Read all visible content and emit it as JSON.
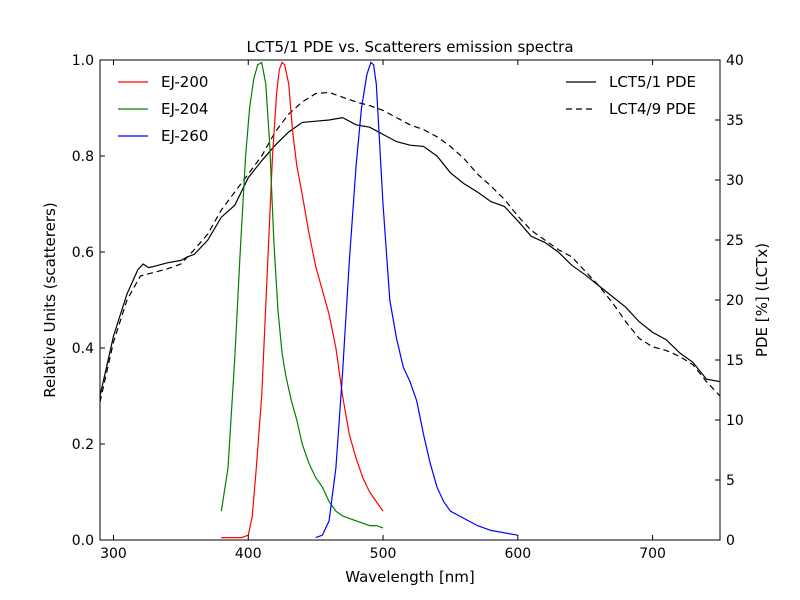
{
  "chart_data": {
    "type": "line",
    "title": "LCT5/1 PDE vs. Scatterers emission spectra",
    "xlabel": "Wavelength [nm]",
    "ylabel_left": "Relative Units (scatterers)",
    "ylabel_right": "PDE [%] (LCTx)",
    "xlim": [
      290,
      750
    ],
    "ylim_left": [
      0.0,
      1.0
    ],
    "ylim_right": [
      0,
      40
    ],
    "xticks": [
      300,
      400,
      500,
      600,
      700
    ],
    "xtick_labels": [
      "300",
      "400",
      "500",
      "600",
      "700"
    ],
    "yticks_left": [
      0.0,
      0.2,
      0.4,
      0.6,
      0.8,
      1.0
    ],
    "ytick_labels_left": [
      "0.0",
      "0.2",
      "0.4",
      "0.6",
      "0.8",
      "1.0"
    ],
    "yticks_right": [
      0,
      5,
      10,
      15,
      20,
      25,
      30,
      35,
      40
    ],
    "ytick_labels_right": [
      "0",
      "5",
      "10",
      "15",
      "20",
      "25",
      "30",
      "35",
      "40"
    ],
    "grid": false,
    "legend_left_placement": "top-left",
    "legend_right_placement": "top-right",
    "series_left": [
      {
        "name": "EJ-200",
        "color": "#ff0000",
        "style": "solid",
        "x": [
          380,
          395,
          400,
          403,
          406,
          410,
          414,
          418,
          421,
          423,
          425,
          427,
          430,
          433,
          436,
          440,
          445,
          450,
          455,
          460,
          465,
          470,
          475,
          480,
          485,
          490,
          495,
          500
        ],
        "y": [
          0.005,
          0.005,
          0.01,
          0.05,
          0.15,
          0.3,
          0.55,
          0.8,
          0.93,
          0.98,
          0.995,
          0.99,
          0.95,
          0.85,
          0.78,
          0.72,
          0.64,
          0.57,
          0.52,
          0.47,
          0.4,
          0.3,
          0.22,
          0.17,
          0.13,
          0.1,
          0.08,
          0.06
        ]
      },
      {
        "name": "EJ-204",
        "color": "#008000",
        "style": "solid",
        "x": [
          380,
          385,
          390,
          394,
          398,
          401,
          404,
          407,
          410,
          413,
          416,
          419,
          422,
          425,
          428,
          432,
          436,
          440,
          445,
          450,
          455,
          460,
          465,
          470,
          475,
          480,
          485,
          490,
          495,
          500
        ],
        "y": [
          0.06,
          0.15,
          0.38,
          0.6,
          0.8,
          0.9,
          0.96,
          0.99,
          0.995,
          0.95,
          0.82,
          0.62,
          0.48,
          0.39,
          0.34,
          0.29,
          0.25,
          0.2,
          0.16,
          0.13,
          0.11,
          0.08,
          0.06,
          0.05,
          0.045,
          0.04,
          0.035,
          0.03,
          0.03,
          0.025
        ]
      },
      {
        "name": "EJ-260",
        "color": "#0000ff",
        "style": "solid",
        "x": [
          450,
          455,
          460,
          465,
          470,
          475,
          480,
          484,
          488,
          491,
          493,
          495,
          497,
          500,
          505,
          510,
          515,
          520,
          525,
          530,
          535,
          540,
          545,
          550,
          560,
          570,
          580,
          590,
          600
        ],
        "y": [
          0.005,
          0.01,
          0.04,
          0.15,
          0.35,
          0.58,
          0.78,
          0.9,
          0.97,
          0.995,
          0.99,
          0.95,
          0.85,
          0.7,
          0.5,
          0.42,
          0.36,
          0.33,
          0.29,
          0.22,
          0.16,
          0.11,
          0.08,
          0.06,
          0.045,
          0.03,
          0.02,
          0.015,
          0.01
        ]
      }
    ],
    "series_right": [
      {
        "name": "LCT5/1 PDE",
        "color": "#000000",
        "style": "solid",
        "x": [
          290,
          300,
          310,
          318,
          322,
          326,
          330,
          340,
          350,
          355,
          360,
          370,
          380,
          390,
          400,
          410,
          420,
          430,
          440,
          450,
          460,
          470,
          480,
          490,
          500,
          510,
          520,
          530,
          540,
          550,
          560,
          570,
          580,
          590,
          600,
          610,
          620,
          630,
          640,
          650,
          660,
          670,
          680,
          690,
          700,
          710,
          720,
          730,
          740,
          750
        ],
        "y": [
          12.0,
          17.0,
          20.5,
          22.5,
          23.0,
          22.7,
          22.8,
          23.1,
          23.3,
          23.6,
          23.8,
          25.0,
          26.9,
          27.9,
          30.2,
          31.6,
          32.9,
          34.0,
          34.8,
          34.9,
          35.0,
          35.2,
          34.6,
          34.4,
          33.8,
          33.2,
          32.9,
          32.8,
          32.0,
          30.6,
          29.7,
          29.0,
          28.2,
          27.8,
          26.6,
          25.3,
          24.8,
          24.0,
          22.9,
          22.1,
          21.2,
          20.3,
          19.4,
          18.2,
          17.3,
          16.7,
          15.6,
          14.8,
          13.4,
          13.2
        ]
      },
      {
        "name": "LCT4/9 PDE",
        "color": "#000000",
        "style": "dashed",
        "x": [
          290,
          300,
          310,
          320,
          330,
          340,
          350,
          360,
          370,
          380,
          390,
          400,
          410,
          420,
          430,
          440,
          450,
          460,
          470,
          480,
          490,
          500,
          510,
          520,
          530,
          540,
          550,
          560,
          570,
          580,
          590,
          600,
          610,
          620,
          630,
          640,
          650,
          660,
          670,
          680,
          690,
          700,
          710,
          720,
          730,
          740,
          750
        ],
        "y": [
          11.5,
          16.5,
          20.0,
          22.0,
          22.3,
          22.6,
          23.0,
          24.2,
          25.5,
          27.5,
          29.0,
          30.5,
          32.0,
          34.0,
          35.5,
          36.5,
          37.2,
          37.3,
          36.9,
          36.5,
          36.2,
          35.8,
          35.2,
          34.6,
          34.2,
          33.6,
          32.8,
          31.8,
          30.5,
          29.5,
          28.4,
          27.0,
          25.8,
          25.0,
          24.2,
          23.6,
          22.4,
          21.2,
          19.8,
          18.2,
          16.8,
          16.1,
          15.8,
          15.3,
          14.6,
          13.2,
          12.0
        ]
      }
    ]
  }
}
